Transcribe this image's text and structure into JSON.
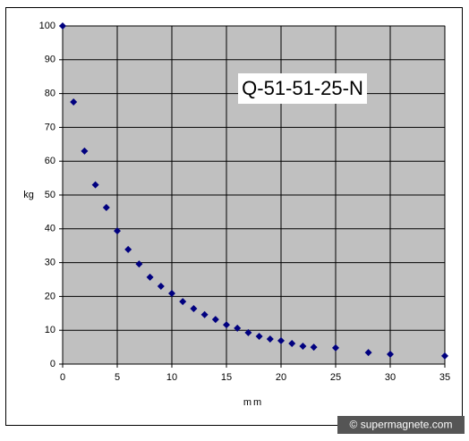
{
  "chart_data": {
    "type": "scatter",
    "annotation": "Q-51-51-25-N",
    "x_label": "mm",
    "y_label": "kg",
    "credit": "© supermagnete.com",
    "x": [
      0,
      1,
      2,
      3,
      4,
      5,
      6,
      7,
      8,
      9,
      10,
      11,
      12,
      13,
      14,
      15,
      16,
      17,
      18,
      19,
      20,
      21,
      22,
      23,
      25,
      28,
      30,
      35
    ],
    "values": [
      100,
      77.5,
      63,
      53,
      46.3,
      39.4,
      33.9,
      29.6,
      25.7,
      23,
      20.9,
      18.5,
      16.4,
      14.6,
      13.2,
      11.6,
      10.6,
      9.3,
      8.2,
      7.4,
      6.9,
      6.1,
      5.3,
      5.0,
      4.8,
      3.4,
      2.9,
      2.4
    ],
    "color": "#00007f",
    "xlim": [
      0,
      35
    ],
    "ylim": [
      0,
      100
    ],
    "xticks": [
      0,
      5,
      10,
      15,
      20,
      25,
      30,
      35
    ],
    "yticks": [
      0,
      10,
      20,
      30,
      40,
      50,
      60,
      70,
      80,
      90,
      100
    ],
    "grid": true
  }
}
